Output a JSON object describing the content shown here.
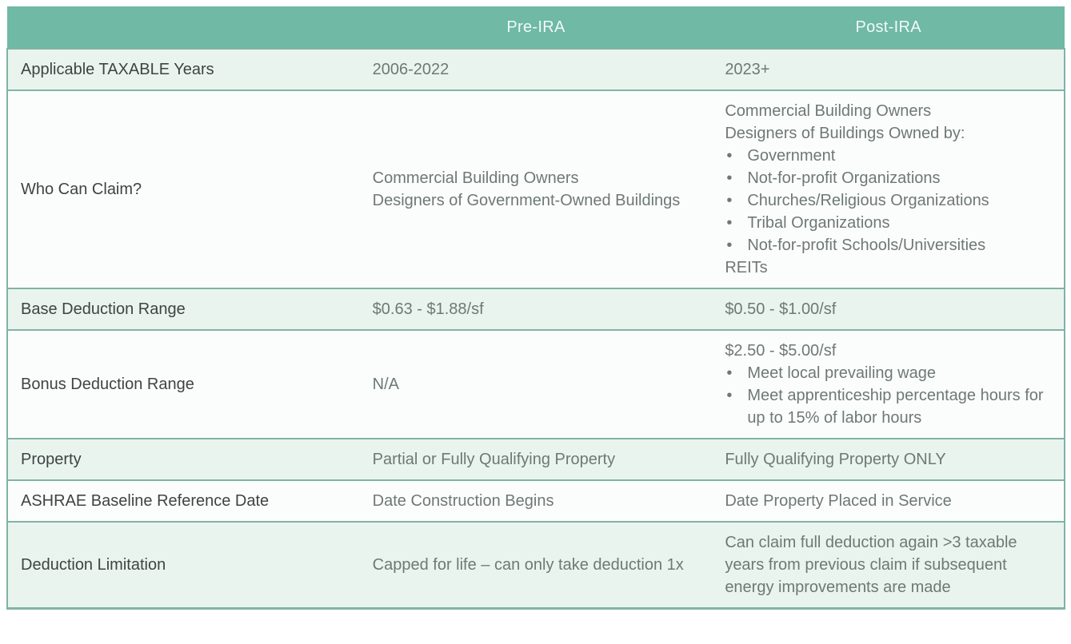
{
  "colors": {
    "header_bg": "#6FB9A5",
    "row_green": "#E9F4EF",
    "row_white": "#FBFDFC",
    "border": "#82B3A5",
    "label_text": "#3E4443",
    "value_text": "#6E7974",
    "header_text": "#F2F9F6"
  },
  "header": {
    "col_label": "",
    "pre_ira": "Pre-IRA",
    "post_ira": "Post-IRA"
  },
  "rows": [
    {
      "label": "Applicable TAXABLE Years",
      "pre": [
        {
          "bullet": false,
          "text": "2006-2022"
        }
      ],
      "post": [
        {
          "bullet": false,
          "text": "2023+"
        }
      ]
    },
    {
      "label": "Who Can Claim?",
      "pre": [
        {
          "bullet": false,
          "text": "Commercial Building Owners"
        },
        {
          "bullet": false,
          "text": "Designers of Government-Owned Buildings"
        }
      ],
      "post": [
        {
          "bullet": false,
          "text": "Commercial Building Owners"
        },
        {
          "bullet": false,
          "text": "Designers of Buildings Owned by:"
        },
        {
          "bullet": true,
          "text": "Government"
        },
        {
          "bullet": true,
          "text": "Not-for-profit Organizations"
        },
        {
          "bullet": true,
          "text": "Churches/Religious Organizations"
        },
        {
          "bullet": true,
          "text": "Tribal Organizations"
        },
        {
          "bullet": true,
          "text": "Not-for-profit Schools/Universities"
        },
        {
          "bullet": false,
          "text": "REITs"
        }
      ]
    },
    {
      "label": "Base Deduction Range",
      "pre": [
        {
          "bullet": false,
          "text": "$0.63 - $1.88/sf"
        }
      ],
      "post": [
        {
          "bullet": false,
          "text": "$0.50 - $1.00/sf"
        }
      ]
    },
    {
      "label": "Bonus Deduction Range",
      "pre": [
        {
          "bullet": false,
          "text": "N/A"
        }
      ],
      "post": [
        {
          "bullet": false,
          "text": "$2.50 - $5.00/sf"
        },
        {
          "bullet": true,
          "text": "Meet local prevailing wage"
        },
        {
          "bullet": true,
          "text": "Meet apprenticeship percentage hours for up to 15% of labor hours"
        }
      ]
    },
    {
      "label": "Property",
      "pre": [
        {
          "bullet": false,
          "text": "Partial or Fully Qualifying Property"
        }
      ],
      "post": [
        {
          "bullet": false,
          "text": "Fully Qualifying Property ONLY"
        }
      ]
    },
    {
      "label": "ASHRAE Baseline Reference Date",
      "pre": [
        {
          "bullet": false,
          "text": "Date Construction Begins"
        }
      ],
      "post": [
        {
          "bullet": false,
          "text": "Date Property Placed in Service"
        }
      ]
    },
    {
      "label": "Deduction Limitation",
      "pre": [
        {
          "bullet": false,
          "text": "Capped for life – can only take deduction 1x"
        }
      ],
      "post": [
        {
          "bullet": false,
          "text": "Can claim full deduction again >3 taxable years from previous claim if subsequent energy improvements are made"
        }
      ]
    }
  ]
}
